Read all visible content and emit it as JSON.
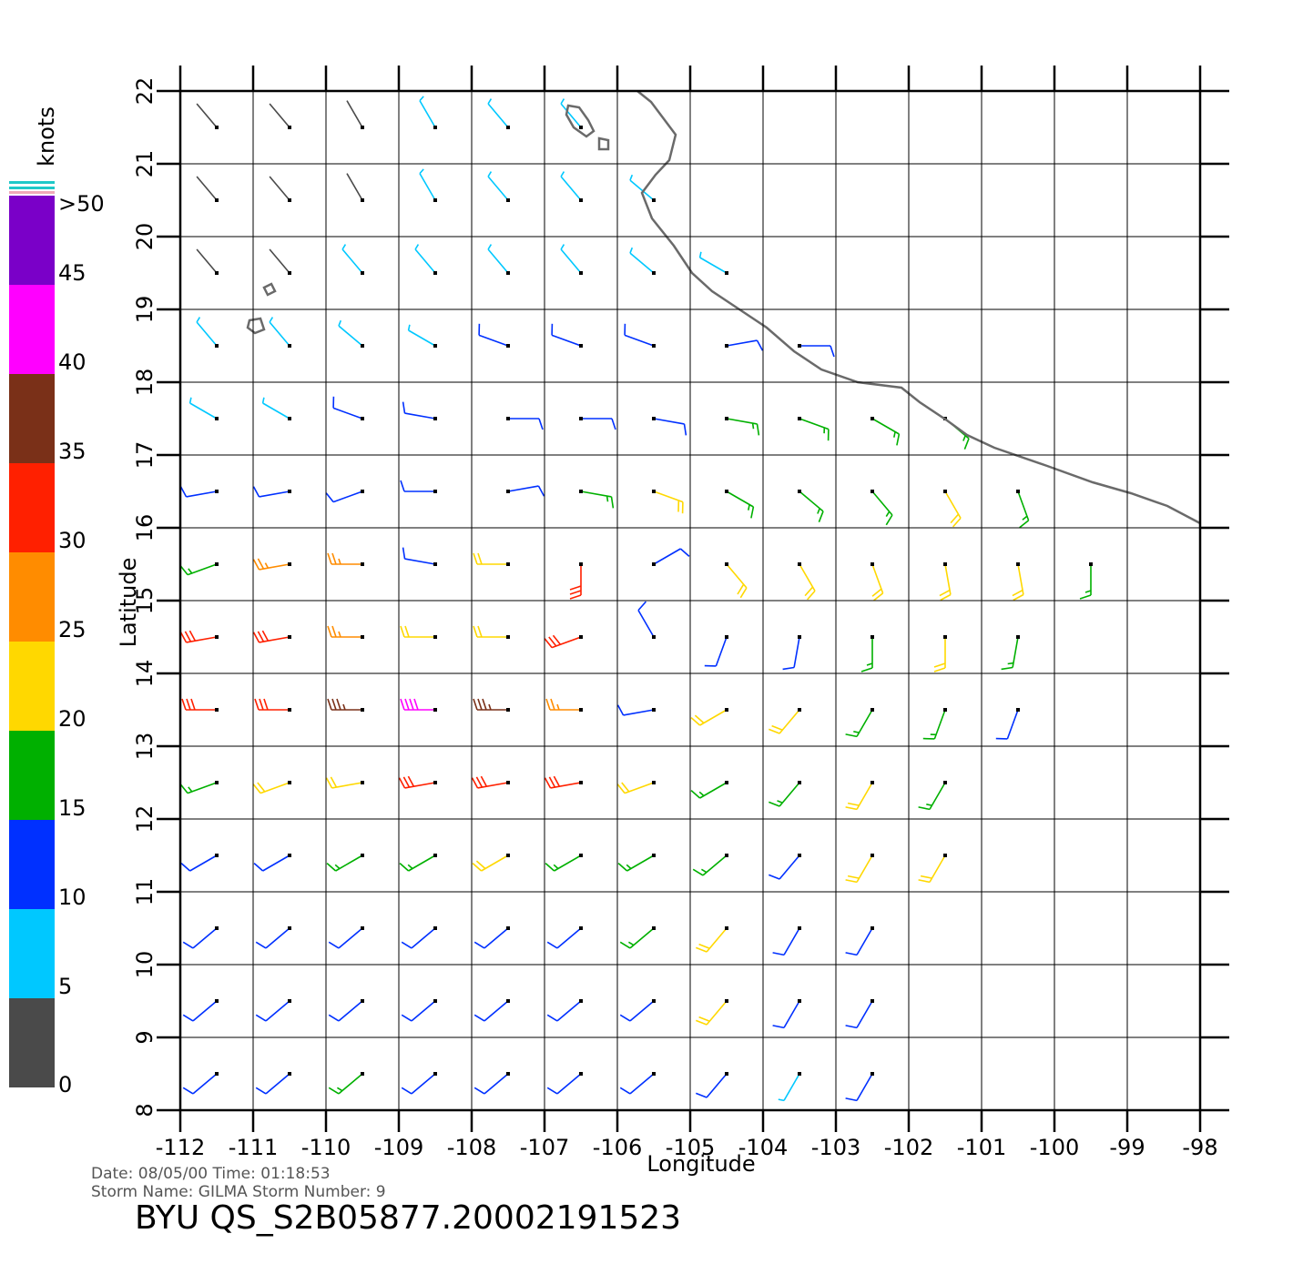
{
  "chart_data": {
    "type": "wind-barb-map",
    "title": "BYU  QS_S2B05877.20002191523",
    "subtitle": [
      "Date: 08/05/00   Time: 01:18:53",
      "Storm  Name: GILMA   Storm  Number: 9"
    ],
    "x_label": "Longitude",
    "y_label": "Latitude",
    "xlim": [
      -112,
      -98
    ],
    "xticks": [
      -112,
      -111,
      -110,
      -109,
      -108,
      -107,
      -106,
      -105,
      -104,
      -103,
      -102,
      -101,
      -100,
      -99,
      -98
    ],
    "ylim": [
      8,
      22
    ],
    "yticks": [
      8,
      9,
      10,
      11,
      12,
      13,
      14,
      15,
      16,
      17,
      18,
      19,
      20,
      21,
      22
    ],
    "grid": true,
    "colorbar": {
      "label": "knots",
      "lim": [
        0,
        50
      ],
      "ticks": [
        0,
        5,
        10,
        15,
        20,
        25,
        30,
        35,
        40,
        45,
        {
          "value": 50,
          "label": ">50"
        }
      ],
      "colors": [
        "#4a4a4a",
        "#00c8ff",
        "#0030ff",
        "#00b000",
        "#ffd800",
        "#ff8c00",
        "#ff2000",
        "#7a3018",
        "#ff00ff",
        "#7a00c8"
      ]
    },
    "wind": {
      "lons": [
        -111.5,
        -110.5,
        -109.5,
        -108.5,
        -107.5,
        -106.5,
        -105.5,
        -104.5,
        -103.5,
        -102.5,
        -101.5,
        -100.5,
        -99.5
      ],
      "lats": [
        21.5,
        20.5,
        19.5,
        18.5,
        17.5,
        16.5,
        15.5,
        14.5,
        13.5,
        12.5,
        11.5,
        10.5,
        9.5,
        8.5
      ],
      "speed": [
        [
          3,
          3,
          4,
          6,
          8,
          8,
          null,
          null,
          null,
          null,
          null,
          null,
          null
        ],
        [
          3,
          3,
          4,
          6,
          7,
          8,
          7,
          null,
          null,
          null,
          null,
          null,
          null
        ],
        [
          3,
          4,
          6,
          7,
          8,
          8,
          8,
          6,
          null,
          null,
          null,
          null,
          null
        ],
        [
          6,
          7,
          8,
          9,
          10,
          12,
          12,
          12,
          10,
          null,
          null,
          null,
          null
        ],
        [
          8,
          9,
          10,
          11,
          12,
          13,
          14,
          16,
          17,
          17,
          18,
          null,
          null
        ],
        [
          10,
          12,
          14,
          12,
          10,
          16,
          20,
          19,
          18,
          18,
          20,
          19,
          null
        ],
        [
          18,
          26,
          28,
          12,
          20,
          30,
          12,
          20,
          22,
          24,
          22,
          20,
          17
        ],
        [
          30,
          32,
          26,
          24,
          22,
          30,
          10,
          12,
          14,
          17,
          20,
          19,
          null
        ],
        [
          30,
          34,
          36,
          40,
          36,
          28,
          14,
          22,
          20,
          18,
          16,
          14,
          null
        ],
        [
          18,
          20,
          24,
          30,
          32,
          34,
          24,
          18,
          16,
          20,
          18,
          null,
          null
        ],
        [
          14,
          14,
          16,
          18,
          20,
          18,
          18,
          17,
          10,
          22,
          20,
          null,
          null
        ],
        [
          12,
          12,
          13,
          13,
          14,
          14,
          15,
          22,
          12,
          14,
          null,
          null,
          null
        ],
        [
          13,
          13,
          14,
          14,
          13,
          13,
          14,
          22,
          10,
          12,
          null,
          null,
          null
        ],
        [
          12,
          13,
          15,
          14,
          13,
          12,
          12,
          11,
          9,
          10,
          null,
          null,
          null
        ]
      ],
      "direction": [
        [
          320,
          320,
          330,
          330,
          320,
          320,
          null,
          null,
          null,
          null,
          null,
          null,
          null
        ],
        [
          320,
          320,
          330,
          330,
          320,
          320,
          310,
          null,
          null,
          null,
          null,
          null,
          null
        ],
        [
          320,
          320,
          320,
          320,
          320,
          320,
          310,
          300,
          null,
          null,
          null,
          null,
          null
        ],
        [
          320,
          320,
          310,
          300,
          290,
          290,
          290,
          80,
          90,
          null,
          null,
          null,
          null
        ],
        [
          300,
          300,
          290,
          280,
          90,
          90,
          100,
          100,
          110,
          120,
          130,
          null,
          null
        ],
        [
          260,
          260,
          250,
          270,
          80,
          100,
          110,
          120,
          130,
          140,
          150,
          160,
          null
        ],
        [
          250,
          260,
          270,
          280,
          270,
          180,
          60,
          140,
          150,
          160,
          170,
          170,
          180
        ],
        [
          260,
          260,
          270,
          270,
          270,
          250,
          330,
          200,
          190,
          180,
          180,
          190,
          null
        ],
        [
          270,
          270,
          270,
          270,
          270,
          270,
          260,
          240,
          220,
          210,
          200,
          200,
          null
        ],
        [
          250,
          250,
          260,
          260,
          260,
          260,
          250,
          240,
          220,
          210,
          210,
          null,
          null
        ],
        [
          240,
          240,
          240,
          240,
          240,
          240,
          240,
          230,
          220,
          210,
          210,
          null,
          null
        ],
        [
          230,
          230,
          230,
          230,
          230,
          230,
          230,
          220,
          210,
          210,
          null,
          null,
          null
        ],
        [
          230,
          230,
          230,
          230,
          230,
          230,
          230,
          220,
          210,
          210,
          null,
          null,
          null
        ],
        [
          230,
          230,
          230,
          230,
          230,
          230,
          230,
          220,
          210,
          210,
          null,
          null,
          null
        ]
      ]
    }
  }
}
